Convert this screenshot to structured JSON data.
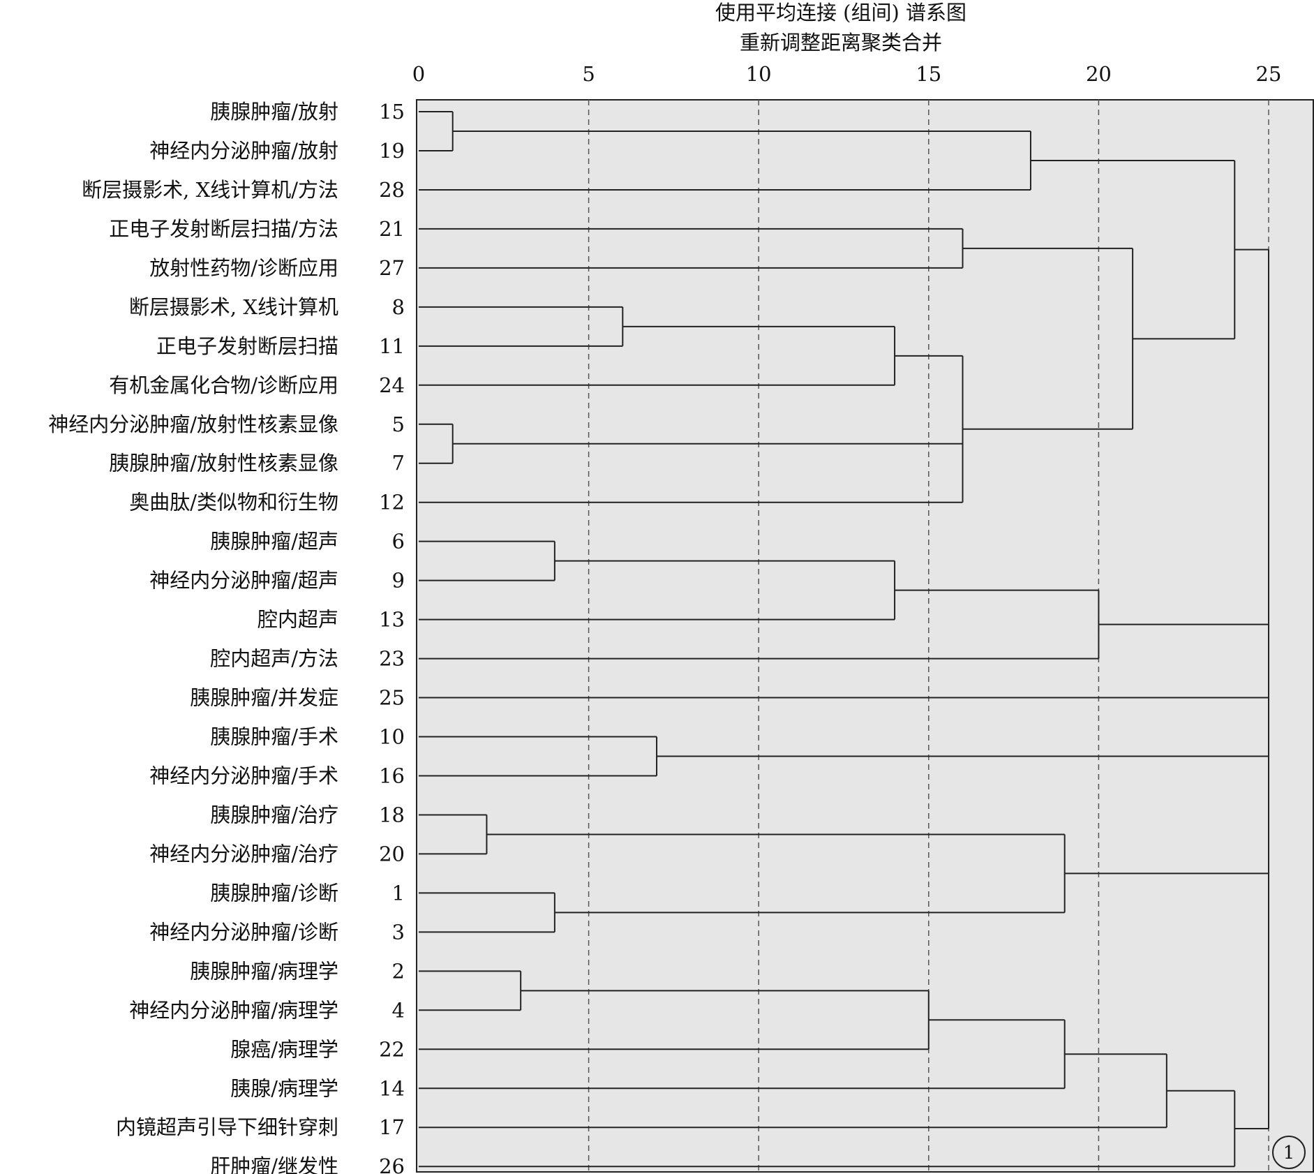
{
  "chart_data": {
    "type": "dendrogram",
    "title": "使用平均连接 (组间) 谱系图",
    "subtitle": "重新调整距离聚类合并",
    "xlim": [
      0,
      25
    ],
    "xticks": [
      0,
      5,
      10,
      15,
      20,
      25
    ],
    "grid": "vertical dashed at ticks",
    "corner_label": "1",
    "leaves": [
      {
        "label": "胰腺肿瘤/放射",
        "id": "15"
      },
      {
        "label": "神经内分泌肿瘤/放射",
        "id": "19"
      },
      {
        "label": "断层摄影术, X线计算机/方法",
        "id": "28"
      },
      {
        "label": "正电子发射断层扫描/方法",
        "id": "21"
      },
      {
        "label": "放射性药物/诊断应用",
        "id": "27"
      },
      {
        "label": "断层摄影术, X线计算机",
        "id": "8"
      },
      {
        "label": "正电子发射断层扫描",
        "id": "11"
      },
      {
        "label": "有机金属化合物/诊断应用",
        "id": "24"
      },
      {
        "label": "神经内分泌肿瘤/放射性核素显像",
        "id": "5"
      },
      {
        "label": "胰腺肿瘤/放射性核素显像",
        "id": "7"
      },
      {
        "label": "奥曲肽/类似物和衍生物",
        "id": "12"
      },
      {
        "label": "胰腺肿瘤/超声",
        "id": "6"
      },
      {
        "label": "神经内分泌肿瘤/超声",
        "id": "9"
      },
      {
        "label": "腔内超声",
        "id": "13"
      },
      {
        "label": "腔内超声/方法",
        "id": "23"
      },
      {
        "label": "胰腺肿瘤/并发症",
        "id": "25"
      },
      {
        "label": "胰腺肿瘤/手术",
        "id": "10"
      },
      {
        "label": "神经内分泌肿瘤/手术",
        "id": "16"
      },
      {
        "label": "胰腺肿瘤/治疗",
        "id": "18"
      },
      {
        "label": "神经内分泌肿瘤/治疗",
        "id": "20"
      },
      {
        "label": "胰腺肿瘤/诊断",
        "id": "1"
      },
      {
        "label": "神经内分泌肿瘤/诊断",
        "id": "3"
      },
      {
        "label": "胰腺肿瘤/病理学",
        "id": "2"
      },
      {
        "label": "神经内分泌肿瘤/病理学",
        "id": "4"
      },
      {
        "label": "腺癌/病理学",
        "id": "22"
      },
      {
        "label": "胰腺/病理学",
        "id": "14"
      },
      {
        "label": "内镜超声引导下细针穿刺",
        "id": "17"
      },
      {
        "label": "肝肿瘤/继发性",
        "id": "26"
      }
    ],
    "merges": [
      {
        "id": "A",
        "children": [
          "15",
          "19"
        ],
        "distance": 1
      },
      {
        "id": "B",
        "children": [
          "A",
          "28"
        ],
        "distance": 18
      },
      {
        "id": "C",
        "children": [
          "21",
          "27"
        ],
        "distance": 16
      },
      {
        "id": "D",
        "children": [
          "8",
          "11"
        ],
        "distance": 6
      },
      {
        "id": "E",
        "children": [
          "D",
          "24"
        ],
        "distance": 14
      },
      {
        "id": "F",
        "children": [
          "5",
          "7"
        ],
        "distance": 1
      },
      {
        "id": "G",
        "children": [
          "E",
          "F",
          "12"
        ],
        "distance": 16
      },
      {
        "id": "H",
        "children": [
          "C",
          "G"
        ],
        "distance": 21
      },
      {
        "id": "I",
        "children": [
          "B",
          "H"
        ],
        "distance": 24
      },
      {
        "id": "J",
        "children": [
          "6",
          "9"
        ],
        "distance": 4
      },
      {
        "id": "K",
        "children": [
          "J",
          "13"
        ],
        "distance": 14
      },
      {
        "id": "L",
        "children": [
          "K",
          "23"
        ],
        "distance": 20
      },
      {
        "id": "M",
        "children": [
          "10",
          "16"
        ],
        "distance": 7
      },
      {
        "id": "N",
        "children": [
          "18",
          "20"
        ],
        "distance": 2
      },
      {
        "id": "O",
        "children": [
          "1",
          "3"
        ],
        "distance": 4
      },
      {
        "id": "P",
        "children": [
          "N",
          "O"
        ],
        "distance": 19
      },
      {
        "id": "Q",
        "children": [
          "2",
          "4"
        ],
        "distance": 3
      },
      {
        "id": "R",
        "children": [
          "Q",
          "22"
        ],
        "distance": 15
      },
      {
        "id": "S",
        "children": [
          "R",
          "14"
        ],
        "distance": 19
      },
      {
        "id": "T",
        "children": [
          "S",
          "17"
        ],
        "distance": 22
      },
      {
        "id": "U",
        "children": [
          "T",
          "26"
        ],
        "distance": 24
      },
      {
        "id": "V",
        "children": [
          "I",
          "L",
          "25",
          "M",
          "P",
          "U"
        ],
        "distance": 25
      }
    ]
  }
}
